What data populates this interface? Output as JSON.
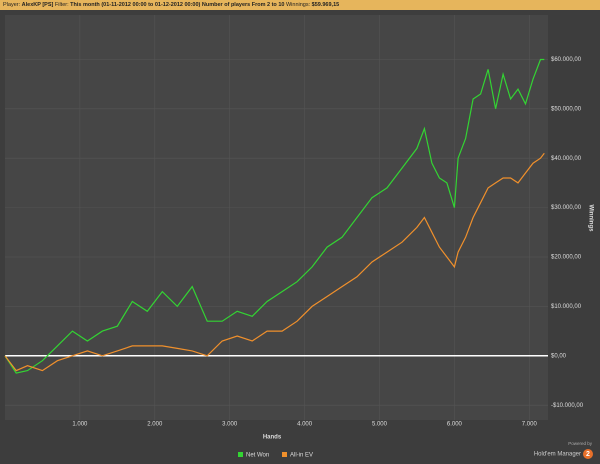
{
  "header": {
    "player_label": "Player:",
    "player": "AlexKP [PS]",
    "filter_label": "Filter:",
    "filter": "This month (01-11-2012 00:00 to 01-12-2012 00:00) Number of players From 2 to 10",
    "winnings_label": "Winnings:",
    "winnings": "$59.969,15"
  },
  "branding": {
    "powered": "Powered by",
    "product": "Hold'em Manager",
    "version": "2"
  },
  "chart_data": {
    "type": "line",
    "x_label": "Hands",
    "y_label": "Winnings",
    "x": [
      0,
      150,
      300,
      500,
      700,
      900,
      1100,
      1300,
      1500,
      1700,
      1900,
      2100,
      2300,
      2500,
      2700,
      2900,
      3100,
      3300,
      3500,
      3700,
      3900,
      4100,
      4300,
      4500,
      4700,
      4900,
      5100,
      5300,
      5500,
      5600,
      5700,
      5800,
      5900,
      6000,
      6050,
      6150,
      6250,
      6350,
      6450,
      6550,
      6650,
      6750,
      6850,
      6950,
      7050,
      7150,
      7200
    ],
    "series": [
      {
        "name": "Net Won",
        "color": "#33d433",
        "values": [
          0,
          -3500,
          -3000,
          -1000,
          2000,
          5000,
          3000,
          5000,
          6000,
          11000,
          9000,
          13000,
          10000,
          14000,
          7000,
          7000,
          9000,
          8000,
          11000,
          13000,
          15000,
          18000,
          22000,
          24000,
          28000,
          32000,
          34000,
          38000,
          42000,
          46000,
          39000,
          36000,
          35000,
          30000,
          40000,
          44000,
          52000,
          53000,
          58000,
          50000,
          57000,
          52000,
          54000,
          51000,
          56000,
          60000,
          60000
        ]
      },
      {
        "name": "All-in EV",
        "color": "#f0902c",
        "values": [
          0,
          -3000,
          -2000,
          -3000,
          -1000,
          0,
          1000,
          0,
          1000,
          2000,
          2000,
          2000,
          1500,
          1000,
          0,
          3000,
          4000,
          3000,
          5000,
          5000,
          7000,
          10000,
          12000,
          14000,
          16000,
          19000,
          21000,
          23000,
          26000,
          28000,
          25000,
          22000,
          20000,
          18000,
          21000,
          24000,
          28000,
          31000,
          34000,
          35000,
          36000,
          36000,
          35000,
          37000,
          39000,
          40000,
          41000
        ]
      }
    ],
    "xlim": [
      0,
      7250
    ],
    "xticks": [
      {
        "value": 1000,
        "label": "1.000"
      },
      {
        "value": 2000,
        "label": "2.000"
      },
      {
        "value": 3000,
        "label": "3.000"
      },
      {
        "value": 4000,
        "label": "4.000"
      },
      {
        "value": 5000,
        "label": "5.000"
      },
      {
        "value": 6000,
        "label": "6.000"
      },
      {
        "value": 7000,
        "label": "7.000"
      }
    ],
    "ylim": [
      -13000,
      69000
    ],
    "yticks": [
      {
        "value": -10000,
        "label": "-$10.000,00"
      },
      {
        "value": 0,
        "label": "$0,00"
      },
      {
        "value": 10000,
        "label": "$10.000,00"
      },
      {
        "value": 20000,
        "label": "$20.000,00"
      },
      {
        "value": 30000,
        "label": "$30.000,00"
      },
      {
        "value": 40000,
        "label": "$40.000,00"
      },
      {
        "value": 50000,
        "label": "$50.000,00"
      },
      {
        "value": 60000,
        "label": "$60.000,00"
      }
    ],
    "grid": true
  }
}
